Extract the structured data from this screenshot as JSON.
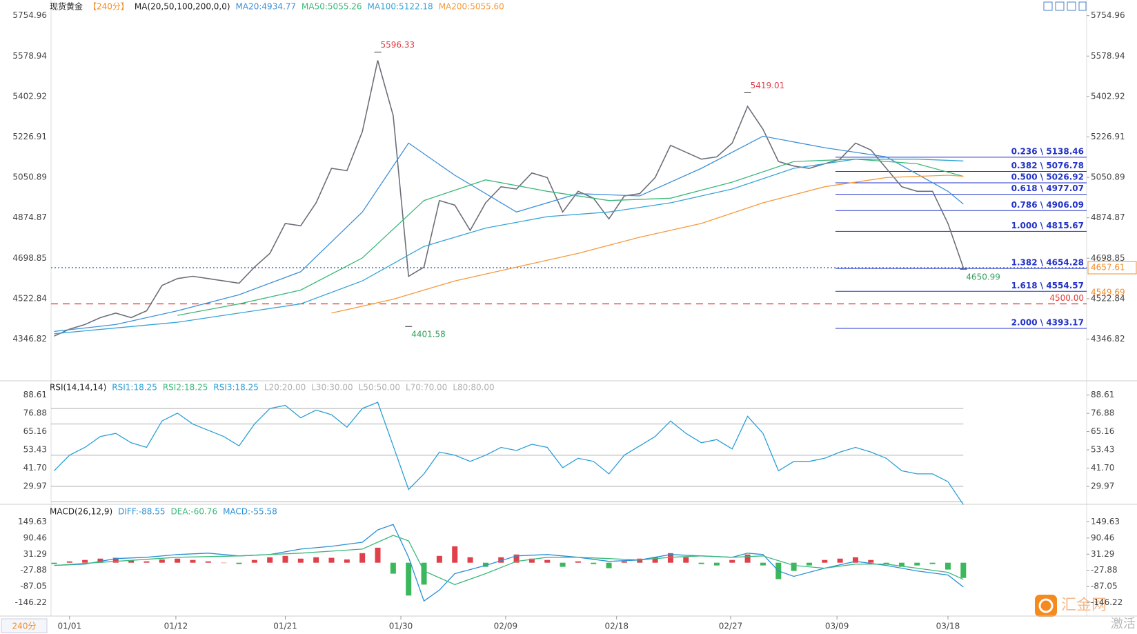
{
  "header": {
    "period_tag": "240分",
    "watermark": "汇金网",
    "corner_text": "激活"
  },
  "chart_data": [
    {
      "type": "line",
      "title": "现货黄金",
      "subtitle": "【240分】",
      "indicator": "MA(20,50,100,200,0,0)",
      "x": [
        0,
        1,
        2,
        3,
        4,
        5,
        6,
        7,
        8,
        9,
        10,
        11,
        12,
        13,
        14,
        15,
        16,
        17,
        18,
        19,
        20,
        21,
        22,
        23,
        24,
        25,
        26,
        27,
        28,
        29,
        30,
        31,
        32,
        33,
        34,
        35,
        36,
        37,
        38,
        39,
        40,
        41,
        42,
        43,
        44,
        45,
        46,
        47,
        48,
        49,
        50,
        51,
        52,
        53,
        54,
        55,
        56,
        57,
        58,
        59
      ],
      "xlim": [
        -0.2,
        67
      ],
      "xticks": [
        {
          "value": 1,
          "label": "01/01"
        },
        {
          "value": 7.9,
          "label": "01/12"
        },
        {
          "value": 15,
          "label": "01/21"
        },
        {
          "value": 22.5,
          "label": "01/30"
        },
        {
          "value": 29.3,
          "label": "02/09"
        },
        {
          "value": 36.5,
          "label": "02/18"
        },
        {
          "value": 43.9,
          "label": "02/27"
        },
        {
          "value": 50.8,
          "label": "03/09"
        },
        {
          "value": 58,
          "label": "03/18"
        }
      ],
      "ylim": [
        4168,
        5811
      ],
      "yticks": [
        4346.82,
        4522.84,
        4698.85,
        4874.87,
        5050.89,
        5226.91,
        5402.92,
        5578.94,
        5754.96
      ],
      "grid": false,
      "series": [
        {
          "color": "#6b6f78",
          "values": [
            4360,
            4390,
            4410,
            4440,
            4460,
            4440,
            4470,
            4580,
            4610,
            4620,
            4610,
            4600,
            4590,
            4660,
            4720,
            4850,
            4840,
            4940,
            5090,
            5080,
            5250,
            5560,
            5320,
            4620,
            4660,
            4950,
            4930,
            4820,
            4940,
            5010,
            5000,
            5070,
            5050,
            4900,
            4990,
            4960,
            4870,
            4970,
            4980,
            5050,
            5190,
            5160,
            5130,
            5140,
            5200,
            5360,
            5260,
            5120,
            5100,
            5090,
            5110,
            5130,
            5200,
            5170,
            5090,
            5010,
            4990,
            4990,
            4850,
            4657.61
          ]
        },
        {
          "name": "MA20:4934.77",
          "color": "#3d8fd9",
          "x": [
            0,
            4,
            8,
            12,
            16,
            20,
            23,
            26,
            30,
            34,
            38,
            42,
            46,
            50,
            54,
            58,
            59
          ],
          "values": [
            4380,
            4410,
            4470,
            4540,
            4640,
            4900,
            5200,
            5060,
            4900,
            4980,
            4970,
            5090,
            5230,
            5180,
            5140,
            4990,
            4934.77
          ]
        },
        {
          "name": "MA50:5055.26",
          "color": "#3cb87a",
          "x": [
            8,
            12,
            16,
            20,
            24,
            28,
            32,
            36,
            40,
            44,
            48,
            52,
            56,
            59
          ],
          "values": [
            4450,
            4500,
            4560,
            4700,
            4950,
            5040,
            4990,
            4950,
            4960,
            5030,
            5120,
            5130,
            5110,
            5055.26
          ]
        },
        {
          "name": "MA100:5122.18",
          "color": "#35a4d8",
          "x": [
            0,
            8,
            16,
            20,
            24,
            28,
            32,
            36,
            40,
            44,
            48,
            52,
            56,
            59
          ],
          "values": [
            4370,
            4420,
            4500,
            4600,
            4750,
            4830,
            4880,
            4900,
            4940,
            5000,
            5090,
            5130,
            5130,
            5122.18
          ]
        },
        {
          "name": "MA200:5055.60",
          "color": "#f59a3b",
          "x": [
            18,
            22,
            26,
            30,
            34,
            38,
            42,
            46,
            50,
            54,
            58,
            59
          ],
          "values": [
            4460,
            4520,
            4600,
            4660,
            4720,
            4790,
            4850,
            4940,
            5010,
            5050,
            5060,
            5055.6
          ]
        }
      ],
      "annotations": [
        {
          "label": "5596.33",
          "x": 21,
          "value": 5596.33,
          "color": "#e0404a",
          "position": "above"
        },
        {
          "label": "4401.58",
          "x": 23,
          "value": 4401.58,
          "color": "#2fa05a",
          "position": "below"
        },
        {
          "label": "5419.01",
          "x": 45,
          "value": 5419.01,
          "color": "#e0404a",
          "position": "above"
        },
        {
          "label": "4650.99",
          "x": 59,
          "value": 4650.99,
          "color": "#2fa05a",
          "position": "below"
        }
      ],
      "fib_x": 50.7,
      "fib_color": "#2333c9",
      "fib_levels": [
        {
          "label": "0.236 \\ 5138.46",
          "value": 5138.46
        },
        {
          "label": "0.382 \\ 5076.78",
          "value": 5076.78
        },
        {
          "label": "0.500 \\ 5026.92",
          "value": 5026.92
        },
        {
          "label": "0.618 \\ 4977.07",
          "value": 4977.07
        },
        {
          "label": "0.786 \\ 4906.09",
          "value": 4906.09
        },
        {
          "label": "1.000 \\ 4815.67",
          "value": 4815.67
        },
        {
          "label": "1.382 \\ 4654.28",
          "value": 4654.28
        },
        {
          "label": "1.618 \\ 4554.57",
          "value": 4554.57
        },
        {
          "label": "2.000 \\ 4393.17",
          "value": 4393.17
        }
      ],
      "hlines": [
        {
          "value": 4500,
          "label": "4500.00",
          "color": "#e53935",
          "dash": "10 7",
          "style": "inline"
        },
        {
          "value": 4657.61,
          "label": "4657.61",
          "color": "#3b6fd9",
          "dash": "2 3",
          "style": "tag",
          "tag_color": "#f08c2a"
        }
      ],
      "price_tags": [
        {
          "value": 4549.69,
          "label": "4549.69",
          "color": "#f08c2a"
        }
      ]
    },
    {
      "type": "line",
      "title": "RSI(14,14,14)",
      "x": [
        0,
        1,
        2,
        3,
        4,
        5,
        6,
        7,
        8,
        9,
        10,
        11,
        12,
        13,
        14,
        15,
        16,
        17,
        18,
        19,
        20,
        21,
        22,
        23,
        24,
        25,
        26,
        27,
        28,
        29,
        30,
        31,
        32,
        33,
        34,
        35,
        36,
        37,
        38,
        39,
        40,
        41,
        42,
        43,
        44,
        45,
        46,
        47,
        48,
        49,
        50,
        51,
        52,
        53,
        54,
        55,
        56,
        57,
        58,
        59
      ],
      "xlim": [
        -0.2,
        67
      ],
      "ylim": [
        18.9,
        96
      ],
      "yticks": [
        29.97,
        {
          "value": 41.7,
          "label": "41.70"
        },
        53.43,
        65.16,
        76.88,
        88.61
      ],
      "grid": false,
      "series": [
        {
          "name": "RSI1:18.25",
          "color": "#2a9fd6",
          "values": [
            40,
            50,
            55,
            62,
            64,
            58,
            55,
            72,
            77,
            70,
            66,
            62,
            56,
            70,
            80,
            82,
            74,
            79,
            76,
            68,
            80,
            84,
            56,
            28,
            38,
            52,
            50,
            46,
            50,
            55,
            53,
            57,
            55,
            42,
            48,
            46,
            38,
            50,
            56,
            62,
            72,
            64,
            58,
            60,
            54,
            75,
            64,
            40,
            46,
            46,
            48,
            52,
            55,
            52,
            48,
            40,
            38,
            38,
            33,
            18.25
          ]
        }
      ],
      "extra_legend": [
        {
          "label": "RSI2:18.25",
          "color": "#3cb87a"
        },
        {
          "label": "RSI3:18.25",
          "color": "#2a9fd6"
        }
      ],
      "levels": [
        {
          "value": 20,
          "label": "L20:20.00"
        },
        {
          "value": 30,
          "label": "L30:30.00"
        },
        {
          "value": 50,
          "label": "L50:50.00"
        },
        {
          "value": 70,
          "label": "L70:70.00"
        },
        {
          "value": 80,
          "label": "L80:80.00"
        }
      ],
      "level_color": "#b0b0b0"
    },
    {
      "type": "macd",
      "title": "MACD(26,12,9)",
      "x": [
        0,
        1,
        2,
        3,
        4,
        5,
        6,
        7,
        8,
        9,
        10,
        11,
        12,
        13,
        14,
        15,
        16,
        17,
        18,
        19,
        20,
        21,
        22,
        23,
        24,
        25,
        26,
        27,
        28,
        29,
        30,
        31,
        32,
        33,
        34,
        35,
        36,
        37,
        38,
        39,
        40,
        41,
        42,
        43,
        44,
        45,
        46,
        47,
        48,
        49,
        50,
        51,
        52,
        53,
        54,
        55,
        56,
        57,
        58,
        59
      ],
      "xlim": [
        -0.2,
        67
      ],
      "ylim": [
        -192.5,
        201
      ],
      "yticks": [
        -146.22,
        -87.05,
        -27.88,
        31.29,
        90.46,
        149.63
      ],
      "grid": false,
      "series": [
        {
          "name": "DIFF:-88.55",
          "color": "#2a8fd6",
          "x": [
            0,
            2,
            4,
            6,
            8,
            10,
            12,
            14,
            16,
            18,
            20,
            21,
            22,
            23,
            24,
            25,
            26,
            28,
            30,
            32,
            34,
            36,
            38,
            40,
            42,
            44,
            45,
            46,
            47,
            48,
            50,
            52,
            54,
            56,
            58,
            59
          ],
          "values": [
            -10,
            -5,
            15,
            20,
            30,
            35,
            25,
            30,
            50,
            60,
            75,
            120,
            140,
            20,
            -140,
            -100,
            -40,
            -10,
            25,
            30,
            20,
            5,
            10,
            30,
            25,
            20,
            35,
            30,
            -30,
            -50,
            -20,
            5,
            -10,
            -30,
            -45,
            -88.55
          ]
        },
        {
          "name": "DEA:-60.76",
          "color": "#3cb87a",
          "x": [
            0,
            4,
            8,
            12,
            16,
            20,
            22,
            23,
            24,
            26,
            28,
            30,
            32,
            34,
            36,
            38,
            40,
            42,
            44,
            46,
            48,
            50,
            52,
            54,
            56,
            58,
            59
          ],
          "values": [
            -10,
            5,
            20,
            25,
            35,
            50,
            100,
            80,
            -30,
            -80,
            -40,
            5,
            20,
            20,
            15,
            10,
            20,
            25,
            20,
            25,
            -10,
            -20,
            -5,
            -5,
            -20,
            -35,
            -60.76
          ]
        },
        {
          "name": "MACD:-55.58",
          "style": "histogram",
          "color": "#e0404a",
          "negative_color": "#3cb85c",
          "label_color": "#2a8fd6",
          "values": [
            -5,
            5,
            10,
            15,
            18,
            10,
            5,
            12,
            15,
            10,
            5,
            0,
            -5,
            10,
            20,
            25,
            15,
            20,
            18,
            12,
            35,
            55,
            -40,
            -120,
            -80,
            25,
            60,
            20,
            -15,
            20,
            30,
            15,
            10,
            -15,
            5,
            -5,
            -20,
            5,
            15,
            20,
            35,
            20,
            -5,
            -10,
            10,
            30,
            -10,
            -60,
            -30,
            -10,
            10,
            15,
            20,
            10,
            -5,
            -15,
            -10,
            -5,
            -25,
            -55.58
          ]
        }
      ]
    }
  ]
}
